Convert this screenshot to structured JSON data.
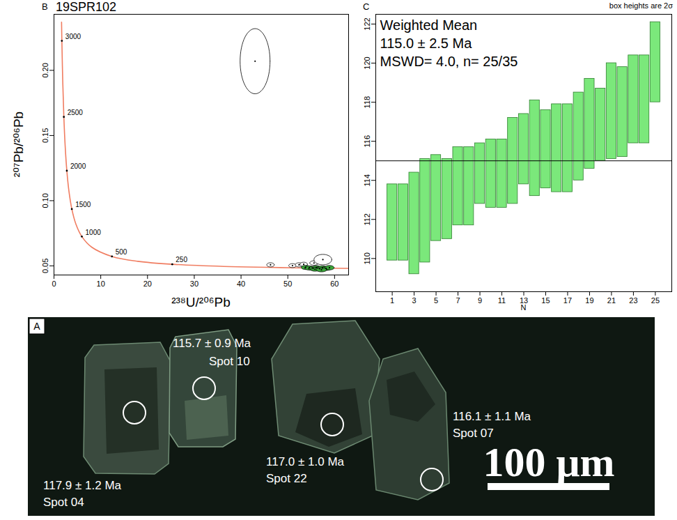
{
  "title": "19SPR102",
  "note": "box heights are 2σ",
  "chart_data": [
    {
      "type": "scatter",
      "panel": "B",
      "x_label": "²³⁸U/²⁰⁶Pb",
      "y_label": "²⁰⁷Pb/²⁰⁶Pb",
      "xlim": [
        0,
        63
      ],
      "xticks": [
        0,
        10,
        20,
        30,
        40,
        50,
        60
      ],
      "ylim": [
        0.043,
        0.243
      ],
      "yticks": [
        0.05,
        {
          "value": 0.1,
          "label": "0.10"
        },
        0.15,
        {
          "value": 0.2,
          "label": "0.20"
        }
      ],
      "x": [
        43.0,
        46.3,
        51.0,
        52.4,
        53.4,
        55.6,
        57.5,
        53.8,
        54.6,
        55.4,
        56.1,
        56.8,
        57.4,
        58.2,
        58.9,
        55.8,
        57.2
      ],
      "values": [
        0.207,
        0.0508,
        0.0502,
        0.0508,
        0.0512,
        0.0522,
        0.0548,
        0.0488,
        0.0484,
        0.048,
        0.0486,
        0.0478,
        0.0484,
        0.048,
        0.0486,
        0.0474,
        0.047
      ],
      "x_errors": [
        3.2,
        0.8,
        0.8,
        0.8,
        0.8,
        0.9,
        1.9,
        0.9,
        1.0,
        1.0,
        0.9,
        1.1,
        1.0,
        1.0,
        1.0,
        0.9,
        1.1
      ],
      "y_errors": [
        0.025,
        0.0016,
        0.0015,
        0.0016,
        0.0016,
        0.0017,
        0.004,
        0.0016,
        0.0016,
        0.0015,
        0.0016,
        0.0016,
        0.0016,
        0.0015,
        0.0017,
        0.0015,
        0.0016
      ],
      "colors": [
        "#ffffff",
        "#ffffff",
        "#ffffff",
        "#ffffff",
        "#ffffff",
        "#ffffff",
        "#ffffff",
        "#3aa63a",
        "#3aa63a",
        "#3aa63a",
        "#3aa63a",
        "#3aa63a",
        "#3aa63a",
        "#3aa63a",
        "#3aa63a",
        "#3aa63a",
        "#3aa63a"
      ],
      "concordia": {
        "x": [
          1.6194,
          1.6874,
          1.8797,
          2.1109,
          2.3943,
          2.7492,
          3.2063,
          3.8168,
          4.6731,
          5.9595,
          8.105,
          12.399,
          17.923,
          25.29,
          36.339,
          55.55,
          62.09,
          63.97
        ],
        "values": [
          0.23702,
          0.22265,
          0.19093,
          0.16427,
          0.14187,
          0.12301,
          0.10707,
          0.09359,
          0.08219,
          0.0725,
          0.06425,
          0.05722,
          0.0535,
          0.0512,
          0.04957,
          0.04832,
          0.04808,
          0.04802
        ],
        "ages": [
          null,
          3000,
          null,
          2500,
          null,
          2000,
          null,
          1500,
          null,
          1000,
          null,
          500,
          null,
          250,
          null,
          null,
          null,
          null
        ],
        "color": "#f07d61"
      }
    },
    {
      "type": "bar",
      "panel": "C",
      "x_label": "N",
      "annotations": [
        "Weighted Mean",
        "115.0 ± 2.5 Ma",
        "MSWD= 4.0, n= 25/35"
      ],
      "weighted_mean": 115.0,
      "xlim": [
        -0.5,
        26.5
      ],
      "xticks": [
        1,
        3,
        5,
        7,
        9,
        11,
        13,
        15,
        17,
        19,
        21,
        23,
        25
      ],
      "ylim": [
        108.3,
        122.5
      ],
      "yticks": [
        110,
        112,
        114,
        116,
        118,
        120,
        122
      ],
      "x": [
        1,
        2,
        3,
        4,
        5,
        6,
        7,
        8,
        9,
        10,
        11,
        12,
        13,
        14,
        15,
        16,
        17,
        18,
        19,
        20,
        21,
        22,
        23,
        24,
        25
      ],
      "values": [
        111.85,
        111.85,
        111.8,
        112.45,
        113.1,
        113.05,
        113.7,
        113.7,
        114.35,
        114.35,
        114.35,
        115.0,
        115.6,
        115.65,
        115.6,
        115.65,
        115.65,
        116.25,
        116.9,
        116.85,
        117.55,
        117.5,
        118.15,
        118.15,
        120.05
      ],
      "errors": [
        1.95,
        1.95,
        2.6,
        2.65,
        2.2,
        2.05,
        2.0,
        2.0,
        1.55,
        1.75,
        1.75,
        2.2,
        1.8,
        2.45,
        2.0,
        2.25,
        2.25,
        2.25,
        2.3,
        1.85,
        2.45,
        2.3,
        2.25,
        2.25,
        2.05
      ],
      "color": "#7be87b"
    }
  ],
  "image": {
    "panel": "A",
    "scale_bar": "100 μm",
    "spots": [
      {
        "age": "115.7 ± 0.9 Ma",
        "spot": "Spot 10"
      },
      {
        "age": "117.9 ± 1.2 Ma",
        "spot": "Spot 04"
      },
      {
        "age": "117.0 ± 1.0 Ma",
        "spot": "Spot 22"
      },
      {
        "age": "116.1 ± 1.1 Ma",
        "spot": "Spot 07"
      }
    ]
  }
}
